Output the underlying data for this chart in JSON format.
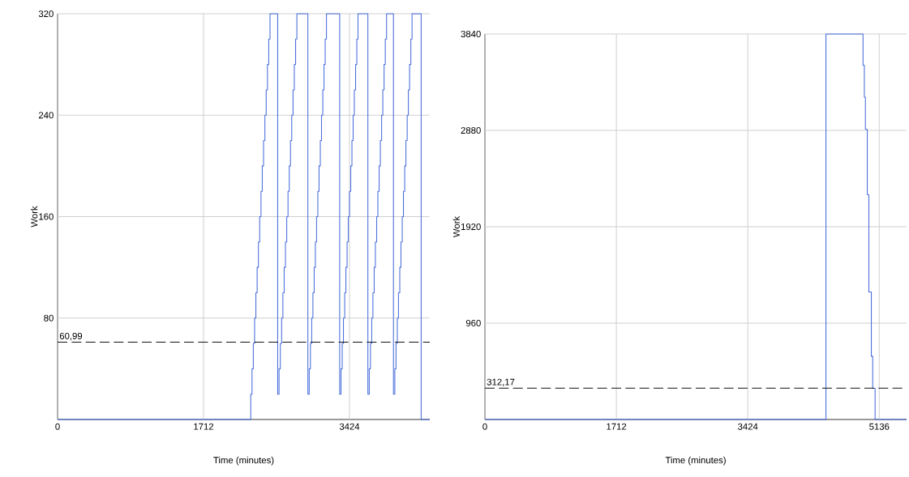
{
  "chart_data": [
    {
      "type": "step",
      "xlabel": "Time (minutes)",
      "ylabel": "Work",
      "xlim": [
        0,
        4366
      ],
      "ylim": [
        0,
        320
      ],
      "xticks": [
        0,
        1712,
        3424
      ],
      "yticks": [
        80,
        160,
        240,
        320
      ],
      "grid": true,
      "color": "#4a6fdc",
      "x": [
        0,
        2266,
        2281,
        2296,
        2311,
        2326,
        2341,
        2356,
        2371,
        2386,
        2401,
        2416,
        2432,
        2447,
        2462,
        2477,
        2492,
        2582,
        2598,
        2613,
        2628,
        2643,
        2658,
        2673,
        2688,
        2703,
        2718,
        2732,
        2747,
        2762,
        2777,
        2792,
        2807,
        2936,
        2952,
        2966,
        2981,
        2995,
        3010,
        3024,
        3038,
        3053,
        3067,
        3082,
        3096,
        3111,
        3125,
        3139,
        3154,
        3309,
        3325,
        3339,
        3353,
        3368,
        3382,
        3396,
        3410,
        3424,
        3439,
        3453,
        3467,
        3481,
        3496,
        3510,
        3524,
        3640,
        3656,
        3670,
        3685,
        3699,
        3714,
        3728,
        3743,
        3757,
        3772,
        3786,
        3801,
        3815,
        3830,
        3844,
        3859,
        3940,
        3956,
        3970,
        3985,
        3999,
        4014,
        4028,
        4043,
        4057,
        4072,
        4086,
        4101,
        4115,
        4129,
        4144,
        4158,
        4265,
        4366
      ],
      "values": [
        0,
        20,
        40,
        60,
        80,
        100,
        120,
        140,
        160,
        180,
        200,
        220,
        240,
        260,
        280,
        300,
        320,
        20,
        40,
        60,
        80,
        100,
        120,
        140,
        160,
        180,
        200,
        220,
        240,
        260,
        280,
        300,
        320,
        20,
        40,
        60,
        80,
        100,
        120,
        140,
        160,
        180,
        200,
        220,
        240,
        260,
        280,
        300,
        320,
        20,
        40,
        60,
        80,
        100,
        120,
        140,
        160,
        180,
        200,
        220,
        240,
        260,
        280,
        300,
        320,
        20,
        40,
        60,
        80,
        100,
        120,
        140,
        160,
        180,
        200,
        220,
        240,
        260,
        280,
        300,
        320,
        20,
        40,
        60,
        80,
        100,
        120,
        140,
        160,
        180,
        200,
        220,
        240,
        260,
        280,
        300,
        320,
        0,
        0
      ],
      "ref_lines": [
        {
          "axis": "y",
          "value": 60.99,
          "label": "60,99",
          "color": "#000000",
          "line_style": "dashed"
        }
      ]
    },
    {
      "type": "step",
      "xlabel": "Time (minutes)",
      "ylabel": "Work",
      "xlim": [
        0,
        5492
      ],
      "ylim": [
        0,
        3840
      ],
      "xticks": [
        0,
        1712,
        3424,
        5136
      ],
      "yticks": [
        960,
        1920,
        2880,
        3840
      ],
      "grid": true,
      "color": "#4a6fdc",
      "x": [
        0,
        4442,
        4925,
        4942,
        4956,
        4980,
        5001,
        5033,
        5051,
        5082,
        5492
      ],
      "values": [
        0,
        3840,
        3530,
        3210,
        2890,
        2240,
        1270,
        630,
        310,
        0,
        0
      ],
      "ref_lines": [
        {
          "axis": "y",
          "value": 312.17,
          "label": "312,17",
          "color": "#000000",
          "line_style": "dashed"
        }
      ]
    }
  ]
}
